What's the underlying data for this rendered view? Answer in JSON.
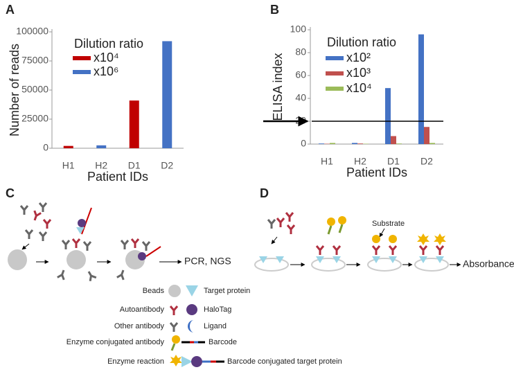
{
  "chart_data": [
    {
      "type": "bar",
      "panel": "A",
      "ylabel": "Number of reads",
      "xlabel": "Patient IDs",
      "legend_title": "Dilution ratio",
      "categories": [
        "H1",
        "H2",
        "D1",
        "D2"
      ],
      "series": [
        {
          "name": "x10⁴",
          "color": "#c00000",
          "values": [
            2000,
            null,
            41000,
            null
          ]
        },
        {
          "name": "x10⁶",
          "color": "#4472c4",
          "values": [
            null,
            2500,
            null,
            92000
          ]
        }
      ],
      "ylim": [
        0,
        100000
      ],
      "yticks": [
        0,
        25000,
        50000,
        75000,
        100000
      ]
    },
    {
      "type": "bar",
      "panel": "B",
      "ylabel": "ELISA index",
      "xlabel": "Patient IDs",
      "legend_title": "Dilution ratio",
      "categories": [
        "H1",
        "H2",
        "D1",
        "D2"
      ],
      "series": [
        {
          "name": "x10²",
          "color": "#4472c4",
          "values": [
            0.5,
            1,
            49,
            96
          ]
        },
        {
          "name": "x10³",
          "color": "#c0504d",
          "values": [
            0.3,
            0.5,
            7,
            15
          ]
        },
        {
          "name": "x10⁴",
          "color": "#9bbb59",
          "values": [
            1,
            0.3,
            0.5,
            1
          ]
        }
      ],
      "ylim": [
        0,
        100
      ],
      "yticks": [
        0,
        20,
        40,
        60,
        80,
        100
      ],
      "reference_line": 20
    }
  ],
  "diagrams": {
    "c": {
      "panel": "C",
      "output": "PCR, NGS"
    },
    "d": {
      "panel": "D",
      "substrate": "Substrate",
      "output": "Absorbance"
    },
    "legend": [
      "Beads",
      "Target protein",
      "Autoantibody",
      "HaloTag",
      "Other antibody",
      "Ligand",
      "Enzyme conjugated antibody",
      "Barcode",
      "Enzyme reaction",
      "Barcode conjugated target protein"
    ]
  }
}
